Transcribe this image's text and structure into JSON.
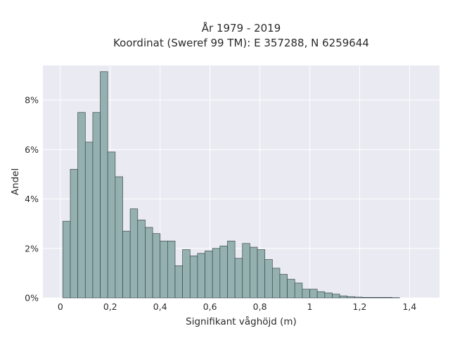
{
  "chart_data": {
    "type": "bar",
    "title": "År 1979 - 2019",
    "subtitle": "Koordinat (Sweref 99 TM): E 357288, N 6259644",
    "xlabel": "Signifikant våghöjd (m)",
    "ylabel": "Andel",
    "xlim": [
      -0.07,
      1.52
    ],
    "ylim": [
      0,
      9.4
    ],
    "bin_width": 0.03,
    "grid": true,
    "legend": "none",
    "bar_color": "#95b0b0",
    "edge_color": "#3a4a4a",
    "background_color": "#eaeaf2",
    "x_ticks": [
      {
        "value": 0,
        "label": "0"
      },
      {
        "value": 0.2,
        "label": "0,2"
      },
      {
        "value": 0.4,
        "label": "0,4"
      },
      {
        "value": 0.6,
        "label": "0,6"
      },
      {
        "value": 0.8,
        "label": "0,8"
      },
      {
        "value": 1.0,
        "label": "1"
      },
      {
        "value": 1.2,
        "label": "1,2"
      },
      {
        "value": 1.4,
        "label": "1,4"
      }
    ],
    "y_ticks": [
      {
        "value": 0,
        "label": "0%"
      },
      {
        "value": 2,
        "label": "2%"
      },
      {
        "value": 4,
        "label": "4%"
      },
      {
        "value": 6,
        "label": "6%"
      },
      {
        "value": 8,
        "label": "8%"
      }
    ],
    "x": [
      0.01,
      0.04,
      0.07,
      0.1,
      0.13,
      0.16,
      0.19,
      0.22,
      0.25,
      0.28,
      0.31,
      0.34,
      0.37,
      0.4,
      0.43,
      0.46,
      0.49,
      0.52,
      0.55,
      0.58,
      0.61,
      0.64,
      0.67,
      0.7,
      0.73,
      0.76,
      0.79,
      0.82,
      0.85,
      0.88,
      0.91,
      0.94,
      0.97,
      1.0,
      1.03,
      1.06,
      1.09,
      1.12,
      1.15,
      1.18,
      1.21,
      1.24,
      1.27,
      1.3,
      1.33
    ],
    "values": [
      3.1,
      5.2,
      7.5,
      6.3,
      7.5,
      9.15,
      5.9,
      4.9,
      2.7,
      3.6,
      3.15,
      2.85,
      2.6,
      2.3,
      2.3,
      1.3,
      1.95,
      1.7,
      1.8,
      1.9,
      2.0,
      2.1,
      2.3,
      1.6,
      2.2,
      2.05,
      1.95,
      1.55,
      1.2,
      0.95,
      0.75,
      0.6,
      0.35,
      0.35,
      0.25,
      0.2,
      0.15,
      0.08,
      0.05,
      0.03,
      0.02,
      0.02,
      0.02,
      0.02,
      0.01
    ]
  }
}
